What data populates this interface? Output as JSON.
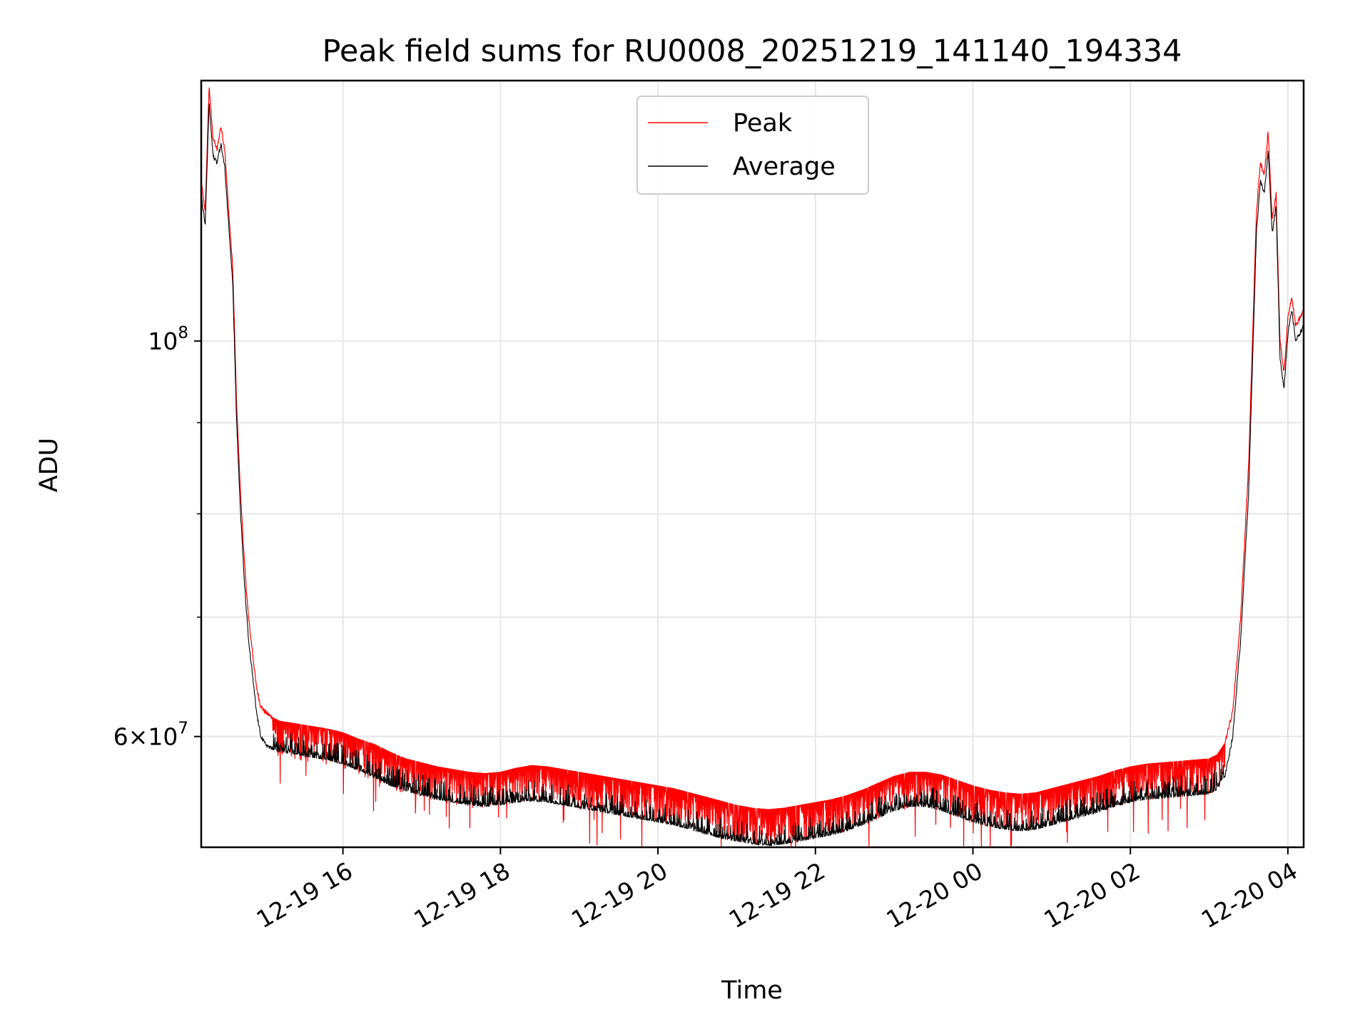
{
  "chart_data": {
    "type": "line",
    "title": "Peak field sums for RU0008_20251219_141140_194334",
    "xlabel": "Time",
    "ylabel": "ADU",
    "yscale": "log",
    "ylim": [
      52000000,
      140000000
    ],
    "xlim_hours": [
      14.2,
      28.2
    ],
    "x_ticks": [
      {
        "label": "12-19 16",
        "hours": 16
      },
      {
        "label": "12-19 18",
        "hours": 18
      },
      {
        "label": "12-19 20",
        "hours": 20
      },
      {
        "label": "12-19 22",
        "hours": 22
      },
      {
        "label": "12-20 00",
        "hours": 24
      },
      {
        "label": "12-20 02",
        "hours": 26
      },
      {
        "label": "12-20 04",
        "hours": 28
      }
    ],
    "y_major_ticks": [
      {
        "base": "10",
        "exp": "8",
        "value": 100000000
      },
      {
        "mant": "6",
        "base": "10",
        "exp": "7",
        "value": 60000000
      }
    ],
    "y_minor_ticks": [
      70000000,
      80000000,
      90000000
    ],
    "grid": true,
    "legend": {
      "position": "upper center",
      "entries": [
        "Peak",
        "Average"
      ]
    },
    "colors": {
      "peak": "#ff0000",
      "average": "#000000",
      "grid": "#e6e6e6"
    },
    "series": [
      {
        "name": "Peak",
        "color": "#ff0000",
        "x_hours": [
          14.2,
          14.25,
          14.3,
          14.35,
          14.4,
          14.45,
          14.5,
          14.55,
          14.6,
          14.65,
          14.7,
          14.75,
          14.8,
          14.85,
          14.9,
          14.95,
          15.0,
          15.1,
          15.2,
          15.4,
          15.6,
          15.8,
          16.0,
          16.2,
          16.4,
          16.6,
          16.8,
          17.0,
          17.2,
          17.4,
          17.6,
          17.8,
          18.0,
          18.2,
          18.4,
          18.6,
          18.8,
          19.0,
          19.2,
          19.4,
          19.6,
          19.8,
          20.0,
          20.2,
          20.4,
          20.6,
          20.8,
          21.0,
          21.2,
          21.4,
          21.6,
          21.8,
          22.0,
          22.2,
          22.4,
          22.6,
          22.8,
          23.0,
          23.2,
          23.4,
          23.6,
          23.8,
          24.0,
          24.2,
          24.4,
          24.6,
          24.8,
          25.0,
          25.2,
          25.4,
          25.6,
          25.8,
          26.0,
          26.2,
          26.4,
          26.6,
          26.8,
          27.0,
          27.1,
          27.2,
          27.3,
          27.4,
          27.5,
          27.55,
          27.6,
          27.65,
          27.7,
          27.75,
          27.8,
          27.85,
          27.9,
          27.95,
          28.0,
          28.05,
          28.1,
          28.15,
          28.2
        ],
        "values": [
          123000000,
          118000000,
          139000000,
          130000000,
          128000000,
          132000000,
          128000000,
          118000000,
          110000000,
          92000000,
          82000000,
          75000000,
          70000000,
          67000000,
          64000000,
          62500000,
          62000000,
          61500000,
          61200000,
          61000000,
          60800000,
          60600000,
          60300000,
          59800000,
          59400000,
          58800000,
          58300000,
          58000000,
          57700000,
          57500000,
          57300000,
          57200000,
          57300000,
          57600000,
          57800000,
          57700000,
          57500000,
          57300000,
          57100000,
          56900000,
          56700000,
          56500000,
          56300000,
          56100000,
          55800000,
          55500000,
          55200000,
          54900000,
          54700000,
          54600000,
          54700000,
          54900000,
          55100000,
          55300000,
          55600000,
          56000000,
          56500000,
          57000000,
          57300000,
          57300000,
          57100000,
          56700000,
          56300000,
          56000000,
          55800000,
          55700000,
          55800000,
          56100000,
          56400000,
          56700000,
          57000000,
          57400000,
          57700000,
          57900000,
          58000000,
          58100000,
          58200000,
          58300000,
          58600000,
          59500000,
          62000000,
          70000000,
          85000000,
          100000000,
          118000000,
          126000000,
          124000000,
          131000000,
          117000000,
          121000000,
          100000000,
          96000000,
          103000000,
          106000000,
          102000000,
          103000000,
          104000000
        ]
      },
      {
        "name": "Average",
        "color": "#000000",
        "x_hours": [
          14.2,
          14.25,
          14.3,
          14.35,
          14.4,
          14.45,
          14.5,
          14.55,
          14.6,
          14.65,
          14.7,
          14.75,
          14.8,
          14.85,
          14.9,
          14.95,
          15.0,
          15.1,
          15.2,
          15.4,
          15.6,
          15.8,
          16.0,
          16.2,
          16.4,
          16.6,
          16.8,
          17.0,
          17.2,
          17.4,
          17.6,
          17.8,
          18.0,
          18.2,
          18.4,
          18.6,
          18.8,
          19.0,
          19.2,
          19.4,
          19.6,
          19.8,
          20.0,
          20.2,
          20.4,
          20.6,
          20.8,
          21.0,
          21.2,
          21.4,
          21.6,
          21.8,
          22.0,
          22.2,
          22.4,
          22.6,
          22.8,
          23.0,
          23.2,
          23.4,
          23.6,
          23.8,
          24.0,
          24.2,
          24.4,
          24.6,
          24.8,
          25.0,
          25.2,
          25.4,
          25.6,
          25.8,
          26.0,
          26.2,
          26.4,
          26.6,
          26.8,
          27.0,
          27.1,
          27.2,
          27.3,
          27.4,
          27.5,
          27.55,
          27.6,
          27.65,
          27.7,
          27.75,
          27.8,
          27.85,
          27.9,
          27.95,
          28.0,
          28.05,
          28.1,
          28.15,
          28.2
        ],
        "values": [
          121000000,
          116000000,
          136000000,
          127000000,
          126000000,
          129000000,
          125000000,
          116000000,
          108000000,
          90000000,
          80000000,
          73000000,
          68000000,
          65000000,
          62000000,
          60200000,
          59500000,
          59000000,
          58800000,
          58600000,
          58400000,
          58200000,
          57900000,
          57400000,
          56900000,
          56300000,
          55900000,
          55600000,
          55300000,
          55100000,
          54900000,
          54800000,
          54900000,
          55100000,
          55200000,
          55100000,
          54900000,
          54700000,
          54500000,
          54300000,
          54100000,
          53900000,
          53700000,
          53500000,
          53200000,
          52900000,
          52600000,
          52400000,
          52200000,
          52100000,
          52200000,
          52400000,
          52600000,
          52800000,
          53100000,
          53500000,
          54000000,
          54500000,
          54800000,
          54800000,
          54500000,
          54100000,
          53700000,
          53400000,
          53200000,
          53100000,
          53200000,
          53500000,
          53800000,
          54100000,
          54400000,
          54800000,
          55100000,
          55300000,
          55400000,
          55500000,
          55600000,
          55700000,
          56000000,
          57000000,
          60000000,
          68000000,
          82000000,
          97000000,
          115000000,
          123000000,
          121000000,
          128000000,
          115000000,
          119000000,
          98000000,
          94000000,
          101000000,
          104000000,
          100000000,
          101000000,
          102000000
        ]
      }
    ]
  }
}
